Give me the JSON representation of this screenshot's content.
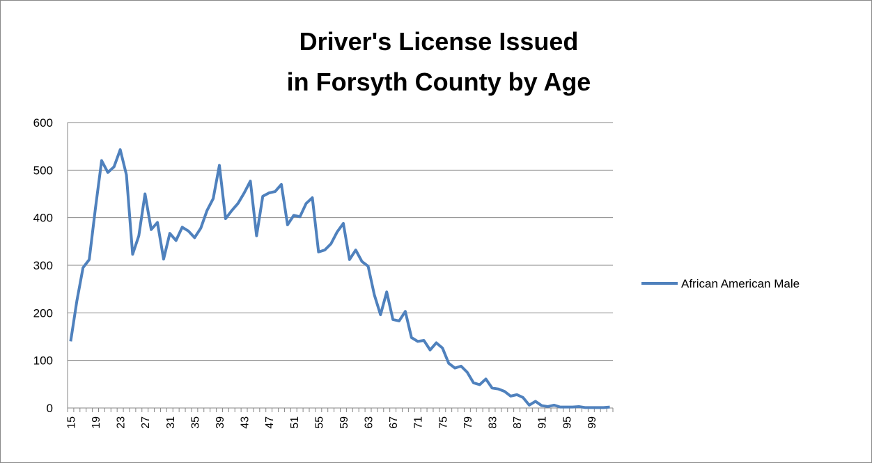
{
  "chart_data": {
    "type": "line",
    "title": [
      "Driver's License Issued",
      "in Forsyth County by Age"
    ],
    "categories": [
      "15",
      null,
      null,
      null,
      "19",
      null,
      null,
      null,
      "23",
      null,
      null,
      null,
      "27",
      null,
      null,
      null,
      "31",
      null,
      null,
      null,
      "35",
      null,
      null,
      null,
      "39",
      null,
      null,
      null,
      "43",
      null,
      null,
      null,
      "47",
      null,
      null,
      null,
      "51",
      null,
      null,
      null,
      "55",
      null,
      null,
      null,
      "59",
      null,
      null,
      null,
      "63",
      null,
      null,
      null,
      "67",
      null,
      null,
      null,
      "71",
      null,
      null,
      null,
      "75",
      null,
      null,
      null,
      "79",
      null,
      null,
      null,
      "83",
      null,
      null,
      null,
      "87",
      null,
      null,
      null,
      "91",
      null,
      null,
      null,
      "95",
      null,
      null,
      null,
      "99",
      null,
      null,
      null
    ],
    "series": [
      {
        "name": "African American Male",
        "color": "#4f81bd",
        "values": [
          140,
          225,
          295,
          312,
          420,
          520,
          495,
          507,
          543,
          490,
          323,
          362,
          450,
          375,
          390,
          313,
          367,
          352,
          380,
          372,
          358,
          378,
          415,
          440,
          510,
          398,
          415,
          430,
          452,
          477,
          362,
          445,
          452,
          455,
          470,
          385,
          405,
          402,
          430,
          442,
          328,
          332,
          345,
          370,
          388,
          312,
          332,
          308,
          298,
          238,
          196,
          244,
          186,
          183,
          203,
          148,
          140,
          142,
          122,
          137,
          126,
          94,
          84,
          88,
          75,
          53,
          49,
          61,
          42,
          40,
          35,
          25,
          28,
          22,
          6,
          14,
          5,
          3,
          6,
          2,
          2,
          2,
          3,
          1,
          1,
          1,
          1,
          2
        ]
      }
    ],
    "ylim": [
      0,
      600
    ],
    "yticks": [
      0,
      100,
      200,
      300,
      400,
      500,
      600
    ],
    "grid": true,
    "legend": "right"
  }
}
